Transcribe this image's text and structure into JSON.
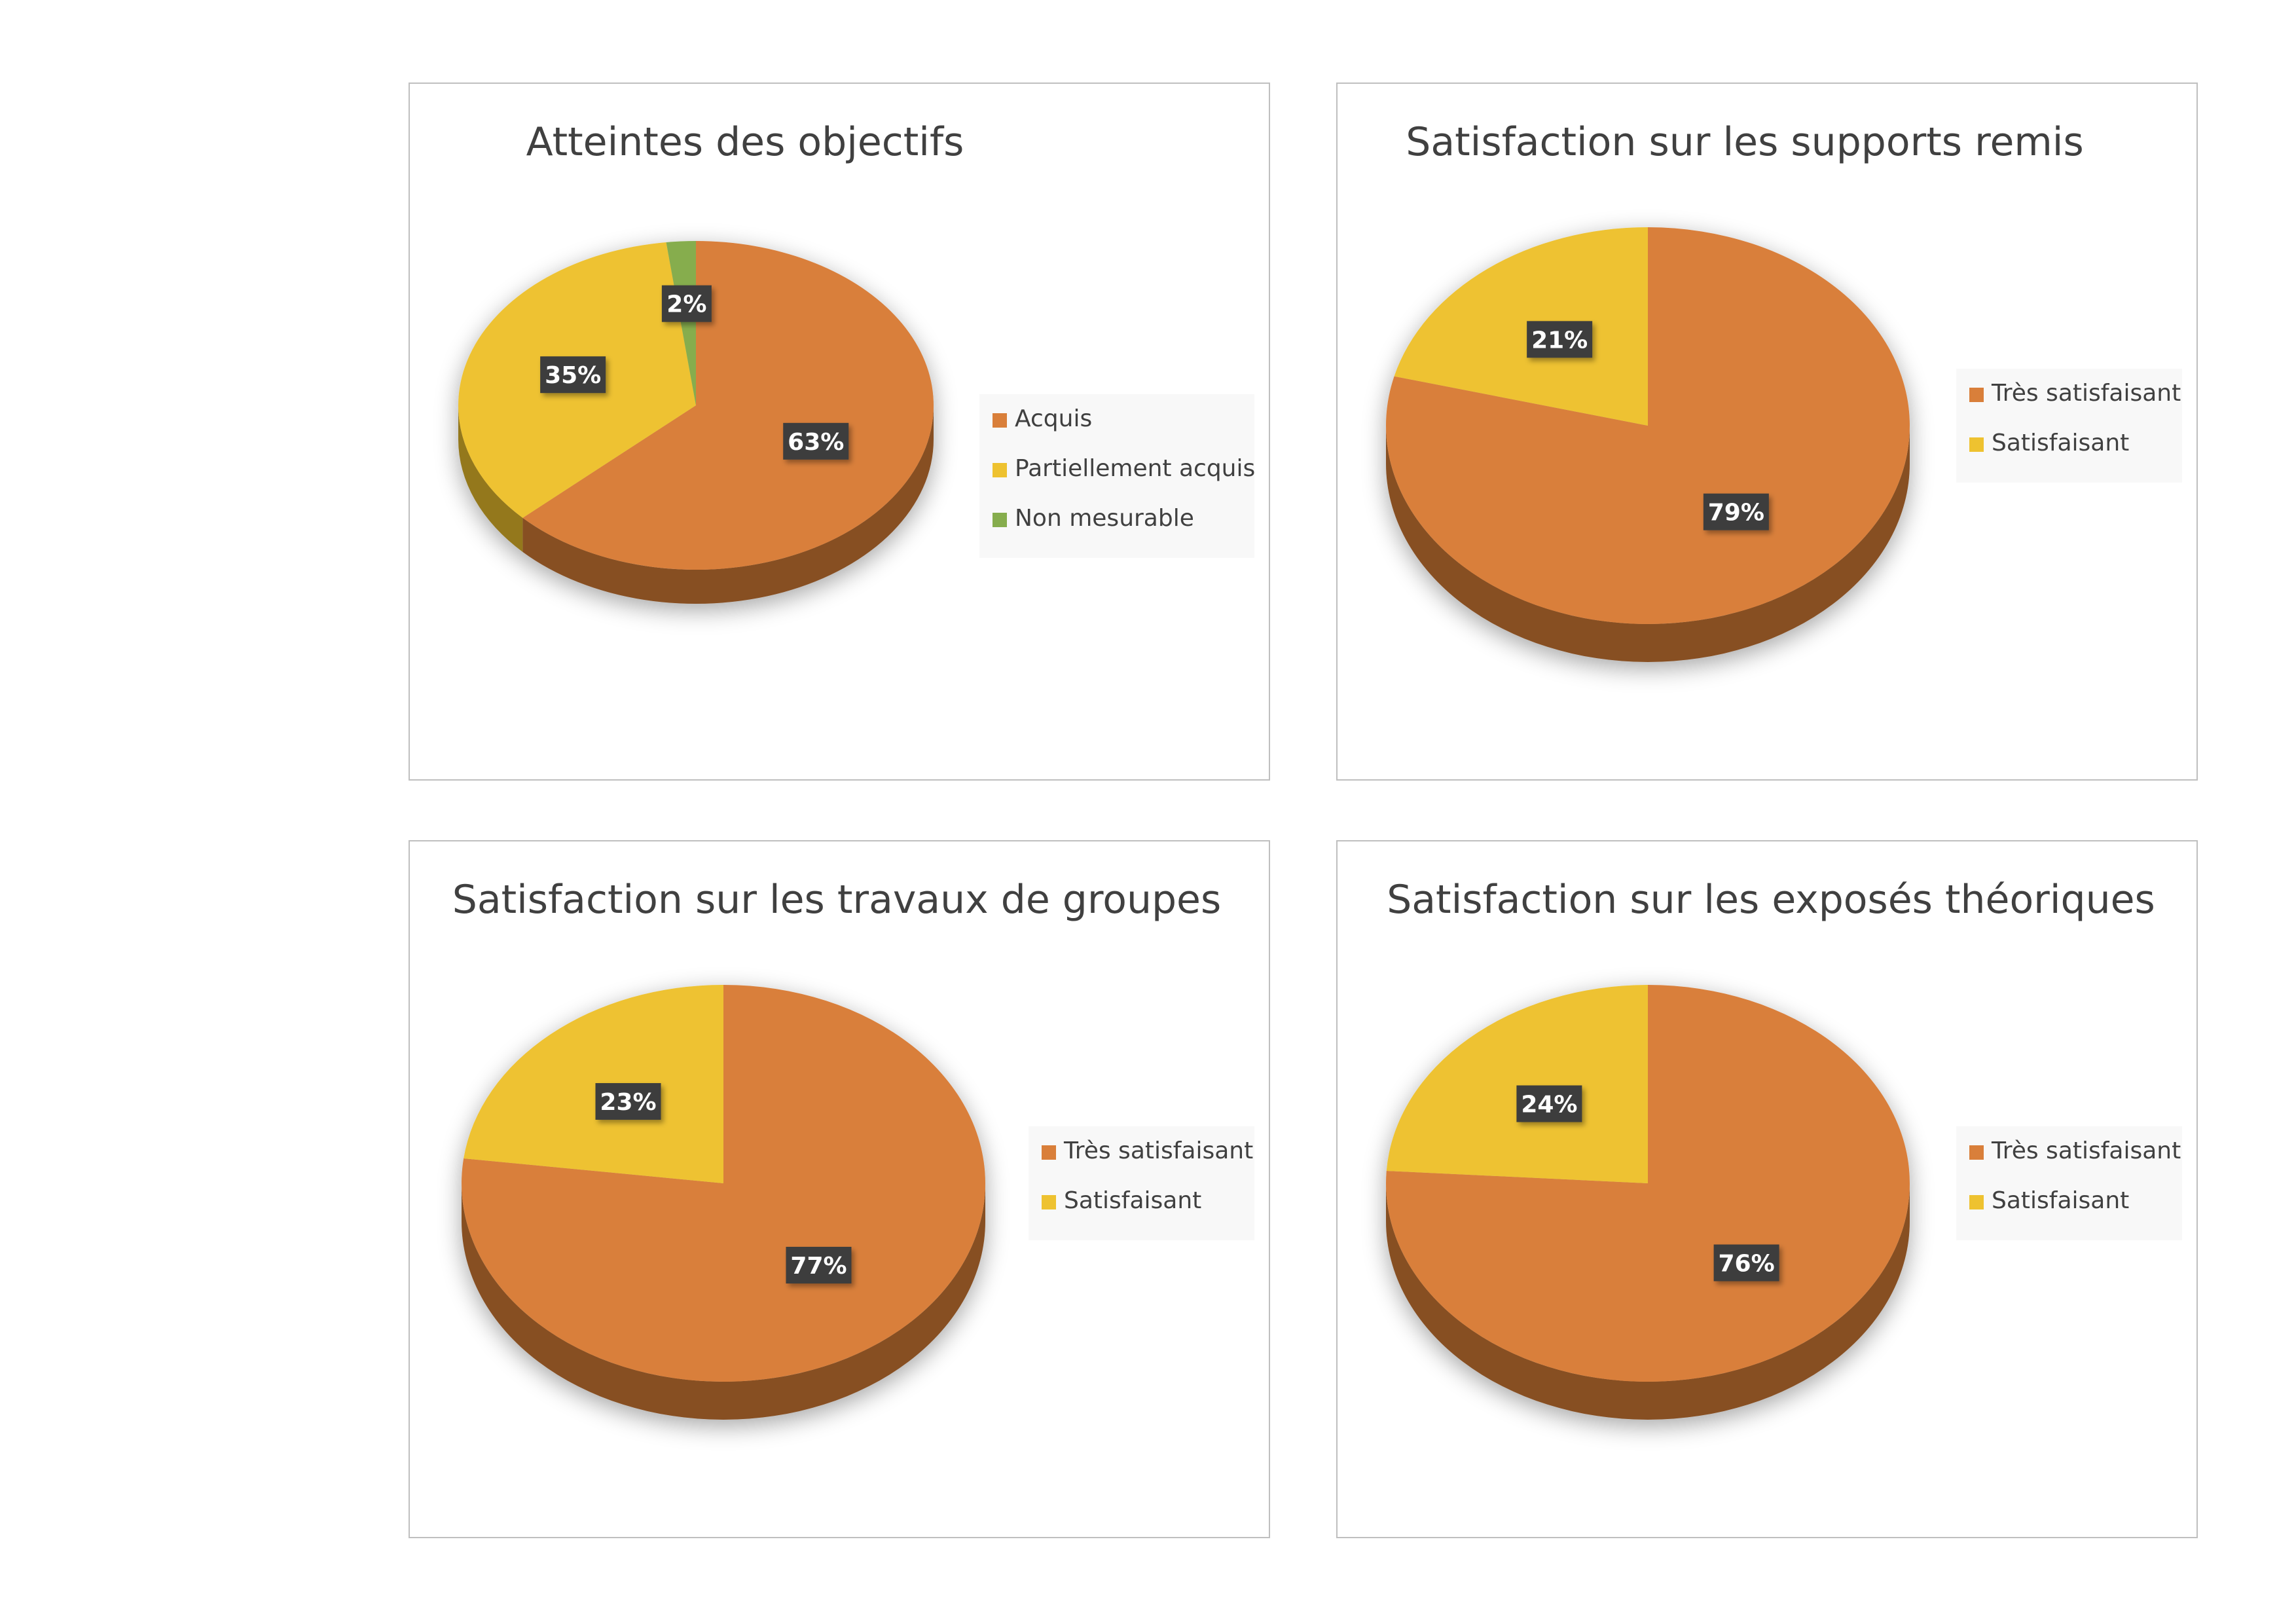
{
  "colors": {
    "orange": "#d97f3a",
    "yellow": "#eec230",
    "green": "#86ad4d",
    "label_bg": "#3d3d3d"
  },
  "chart_data": [
    {
      "type": "pie",
      "title": "Atteintes des objectifs",
      "categories": [
        "Acquis",
        "Partiellement acquis",
        "Non mesurable"
      ],
      "values": [
        63,
        35,
        2
      ],
      "labels": [
        "63%",
        "35%",
        "2%"
      ],
      "colors": [
        "#d97f3a",
        "#eec230",
        "#86ad4d"
      ],
      "legend_position": "right",
      "style": "3d"
    },
    {
      "type": "pie",
      "title": "Satisfaction sur les supports remis",
      "categories": [
        "Très satisfaisant",
        "Satisfaisant"
      ],
      "values": [
        79,
        21
      ],
      "labels": [
        "79%",
        "21%"
      ],
      "colors": [
        "#d97f3a",
        "#eec230"
      ],
      "legend_position": "right",
      "style": "3d"
    },
    {
      "type": "pie",
      "title": "Satisfaction sur les travaux de groupes",
      "categories": [
        "Très satisfaisant",
        "Satisfaisant"
      ],
      "values": [
        77,
        23
      ],
      "labels": [
        "77%",
        "23%"
      ],
      "colors": [
        "#d97f3a",
        "#eec230"
      ],
      "legend_position": "right",
      "style": "3d"
    },
    {
      "type": "pie",
      "title": "Satisfaction sur les exposés théoriques",
      "categories": [
        "Très satisfaisant",
        "Satisfaisant"
      ],
      "values": [
        76,
        24
      ],
      "labels": [
        "76%",
        "24%"
      ],
      "colors": [
        "#d97f3a",
        "#eec230"
      ],
      "legend_position": "right",
      "style": "3d"
    }
  ]
}
